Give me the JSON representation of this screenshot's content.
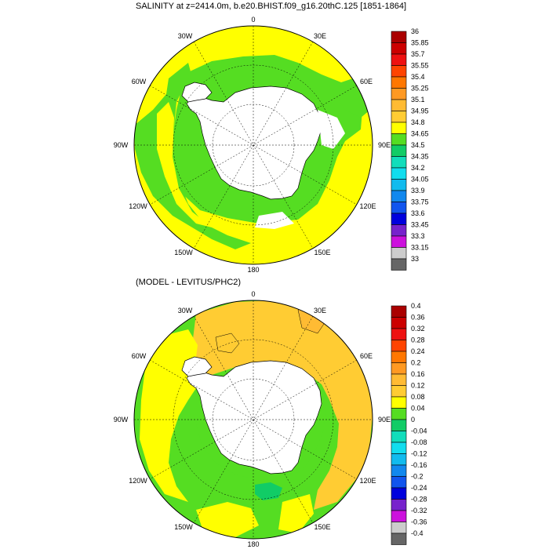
{
  "panels": [
    {
      "title": "SALINITY at z=2414.0m, b.e20.BHIST.f09_g16.20thC.125 [1851-1864]",
      "lon_labels": {
        "n": "0",
        "nne": "30E",
        "ene": "60E",
        "e": "90E",
        "ese": "120E",
        "sse": "150E",
        "s": "180",
        "ssw": "150W",
        "wsw": "120W",
        "w": "90W",
        "wnw": "60W",
        "nnw": "30W"
      },
      "colorbar": {
        "labels": [
          "36",
          "35.85",
          "35.7",
          "35.55",
          "35.4",
          "35.25",
          "35.1",
          "34.95",
          "34.8",
          "34.65",
          "34.5",
          "34.35",
          "34.2",
          "34.05",
          "33.9",
          "33.75",
          "33.6",
          "33.45",
          "33.3",
          "33.15",
          "33"
        ],
        "colors": [
          "#aa0000",
          "#cc0000",
          "#ee1111",
          "#ff4400",
          "#ff7700",
          "#ff9922",
          "#ffbb33",
          "#ffcc33",
          "#ffff00",
          "#55dd22",
          "#11cc66",
          "#11ddbb",
          "#11ddee",
          "#11bbee",
          "#1188ee",
          "#1155ee",
          "#0000dd",
          "#7722cc",
          "#cc11dd",
          "#cccccc",
          "#666666"
        ]
      },
      "colors": {
        "ocean": "#ffff00",
        "contour_fill": "#55dd22",
        "land": "#ffffff"
      }
    },
    {
      "title": "(MODEL - LEVITUS/PHC2)",
      "lon_labels": {
        "n": "0",
        "nne": "30E",
        "ene": "60E",
        "e": "90E",
        "ese": "120E",
        "sse": "150E",
        "s": "180",
        "ssw": "150W",
        "wsw": "120W",
        "w": "90W",
        "wnw": "60W",
        "nnw": "30W"
      },
      "colorbar": {
        "labels": [
          "0.4",
          "0.36",
          "0.32",
          "0.28",
          "0.24",
          "0.2",
          "0.16",
          "0.12",
          "0.08",
          "0.04",
          "0",
          "-0.04",
          "-0.08",
          "-0.12",
          "-0.16",
          "-0.2",
          "-0.24",
          "-0.28",
          "-0.32",
          "-0.36",
          "-0.4"
        ],
        "colors": [
          "#aa0000",
          "#cc0000",
          "#ee1111",
          "#ff4400",
          "#ff7700",
          "#ff9922",
          "#ffbb33",
          "#ffcc33",
          "#ffff00",
          "#55dd22",
          "#11cc66",
          "#11ddbb",
          "#11ddee",
          "#11bbee",
          "#1188ee",
          "#1155ee",
          "#0000dd",
          "#7722cc",
          "#cc11dd",
          "#cccccc",
          "#666666"
        ]
      },
      "colors": {
        "ocean": "#55dd22",
        "contour_fill": "#ffcc33",
        "land": "#ffffff"
      }
    }
  ]
}
